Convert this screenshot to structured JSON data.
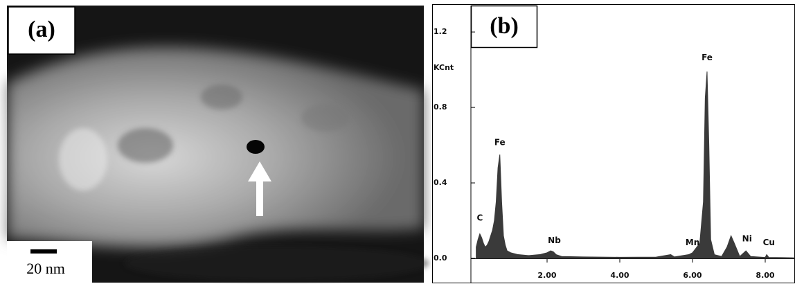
{
  "panel_a": {
    "label": "(a)",
    "scale_bar": "20 nm"
  },
  "chart_data": {
    "type": "area",
    "panel_label": "(b)",
    "y_label": "KCnt",
    "color": "#3a3a3a",
    "x": [
      0.05,
      0.1,
      0.15,
      0.2,
      0.25,
      0.3,
      0.35,
      0.4,
      0.45,
      0.5,
      0.55,
      0.6,
      0.65,
      0.7,
      0.75,
      0.8,
      0.85,
      0.9,
      1.0,
      1.2,
      1.5,
      1.8,
      2.0,
      2.1,
      2.17,
      2.25,
      2.4,
      3.0,
      4.0,
      5.0,
      5.4,
      5.5,
      5.9,
      6.0,
      6.2,
      6.3,
      6.35,
      6.4,
      6.45,
      6.5,
      6.6,
      6.8,
      6.95,
      7.06,
      7.15,
      7.3,
      7.47,
      7.6,
      8.0,
      8.04,
      8.1,
      8.5,
      8.8
    ],
    "values": [
      0.06,
      0.1,
      0.13,
      0.11,
      0.08,
      0.06,
      0.07,
      0.09,
      0.12,
      0.15,
      0.2,
      0.3,
      0.48,
      0.55,
      0.3,
      0.12,
      0.07,
      0.04,
      0.03,
      0.02,
      0.015,
      0.02,
      0.03,
      0.04,
      0.035,
      0.02,
      0.01,
      0.008,
      0.006,
      0.007,
      0.02,
      0.008,
      0.02,
      0.03,
      0.08,
      0.3,
      0.85,
      0.99,
      0.6,
      0.1,
      0.02,
      0.01,
      0.06,
      0.12,
      0.08,
      0.01,
      0.04,
      0.01,
      0.005,
      0.02,
      0.005,
      0.004,
      0.003
    ],
    "xlim": [
      0,
      8.8
    ],
    "ylim": [
      0,
      1.34
    ],
    "xticks": [
      {
        "value": 2,
        "label": "2.00"
      },
      {
        "value": 4,
        "label": "4.00"
      },
      {
        "value": 6,
        "label": "6.00"
      },
      {
        "value": 8,
        "label": "8.00"
      }
    ],
    "yticks": [
      {
        "value": 0,
        "label": "0.0"
      },
      0.4,
      0.8,
      1.2
    ],
    "annotations": [
      {
        "text": "C",
        "x": 0.15,
        "y": 0.2
      },
      {
        "text": "Fe",
        "x": 0.7,
        "y": 0.6
      },
      {
        "text": "Nb",
        "x": 2.2,
        "y": 0.08
      },
      {
        "text": "Fe",
        "x": 6.4,
        "y": 1.05
      },
      {
        "text": "Mn",
        "x": 6.0,
        "y": 0.07
      },
      {
        "text": "Ni",
        "x": 7.5,
        "y": 0.09
      },
      {
        "text": "Cu",
        "x": 8.1,
        "y": 0.07
      }
    ]
  }
}
